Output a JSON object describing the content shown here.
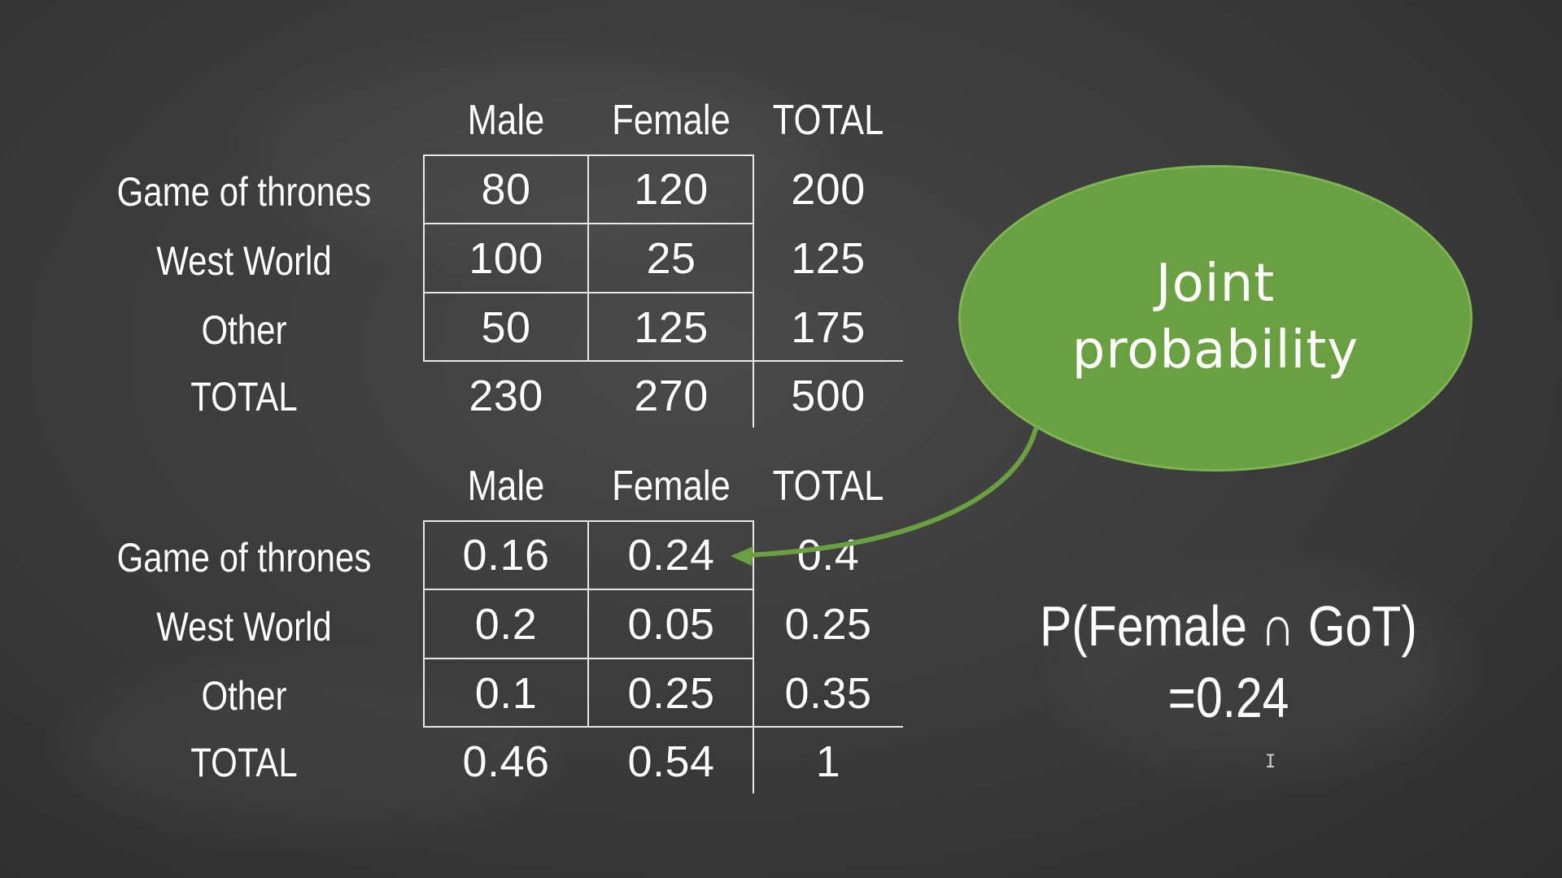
{
  "table1": {
    "headers": [
      "Male",
      "Female",
      "TOTAL"
    ],
    "rows": [
      {
        "label": "Game of thrones",
        "cells": [
          "80",
          "120",
          "200"
        ]
      },
      {
        "label": "West World",
        "cells": [
          "100",
          "25",
          "125"
        ]
      },
      {
        "label": "Other",
        "cells": [
          "50",
          "125",
          "175"
        ]
      },
      {
        "label": "TOTAL",
        "cells": [
          "230",
          "270",
          "500"
        ]
      }
    ]
  },
  "table2": {
    "headers": [
      "Male",
      "Female",
      "TOTAL"
    ],
    "rows": [
      {
        "label": "Game of thrones",
        "cells": [
          "0.16",
          "0.24",
          "0.4"
        ]
      },
      {
        "label": "West World",
        "cells": [
          "0.2",
          "0.05",
          "0.25"
        ]
      },
      {
        "label": "Other",
        "cells": [
          "0.1",
          "0.25",
          "0.35"
        ]
      },
      {
        "label": "TOTAL",
        "cells": [
          "0.46",
          "0.54",
          "1"
        ]
      }
    ]
  },
  "callout": {
    "line1": "Joint",
    "line2": "probability",
    "color": "#6aa041"
  },
  "formula": {
    "line1": "P(Female ∩ GoT)",
    "line2": "=0.24"
  },
  "colors": {
    "background": "#3c3c3c",
    "text": "#ffffff",
    "accent_green": "#6aa041"
  }
}
